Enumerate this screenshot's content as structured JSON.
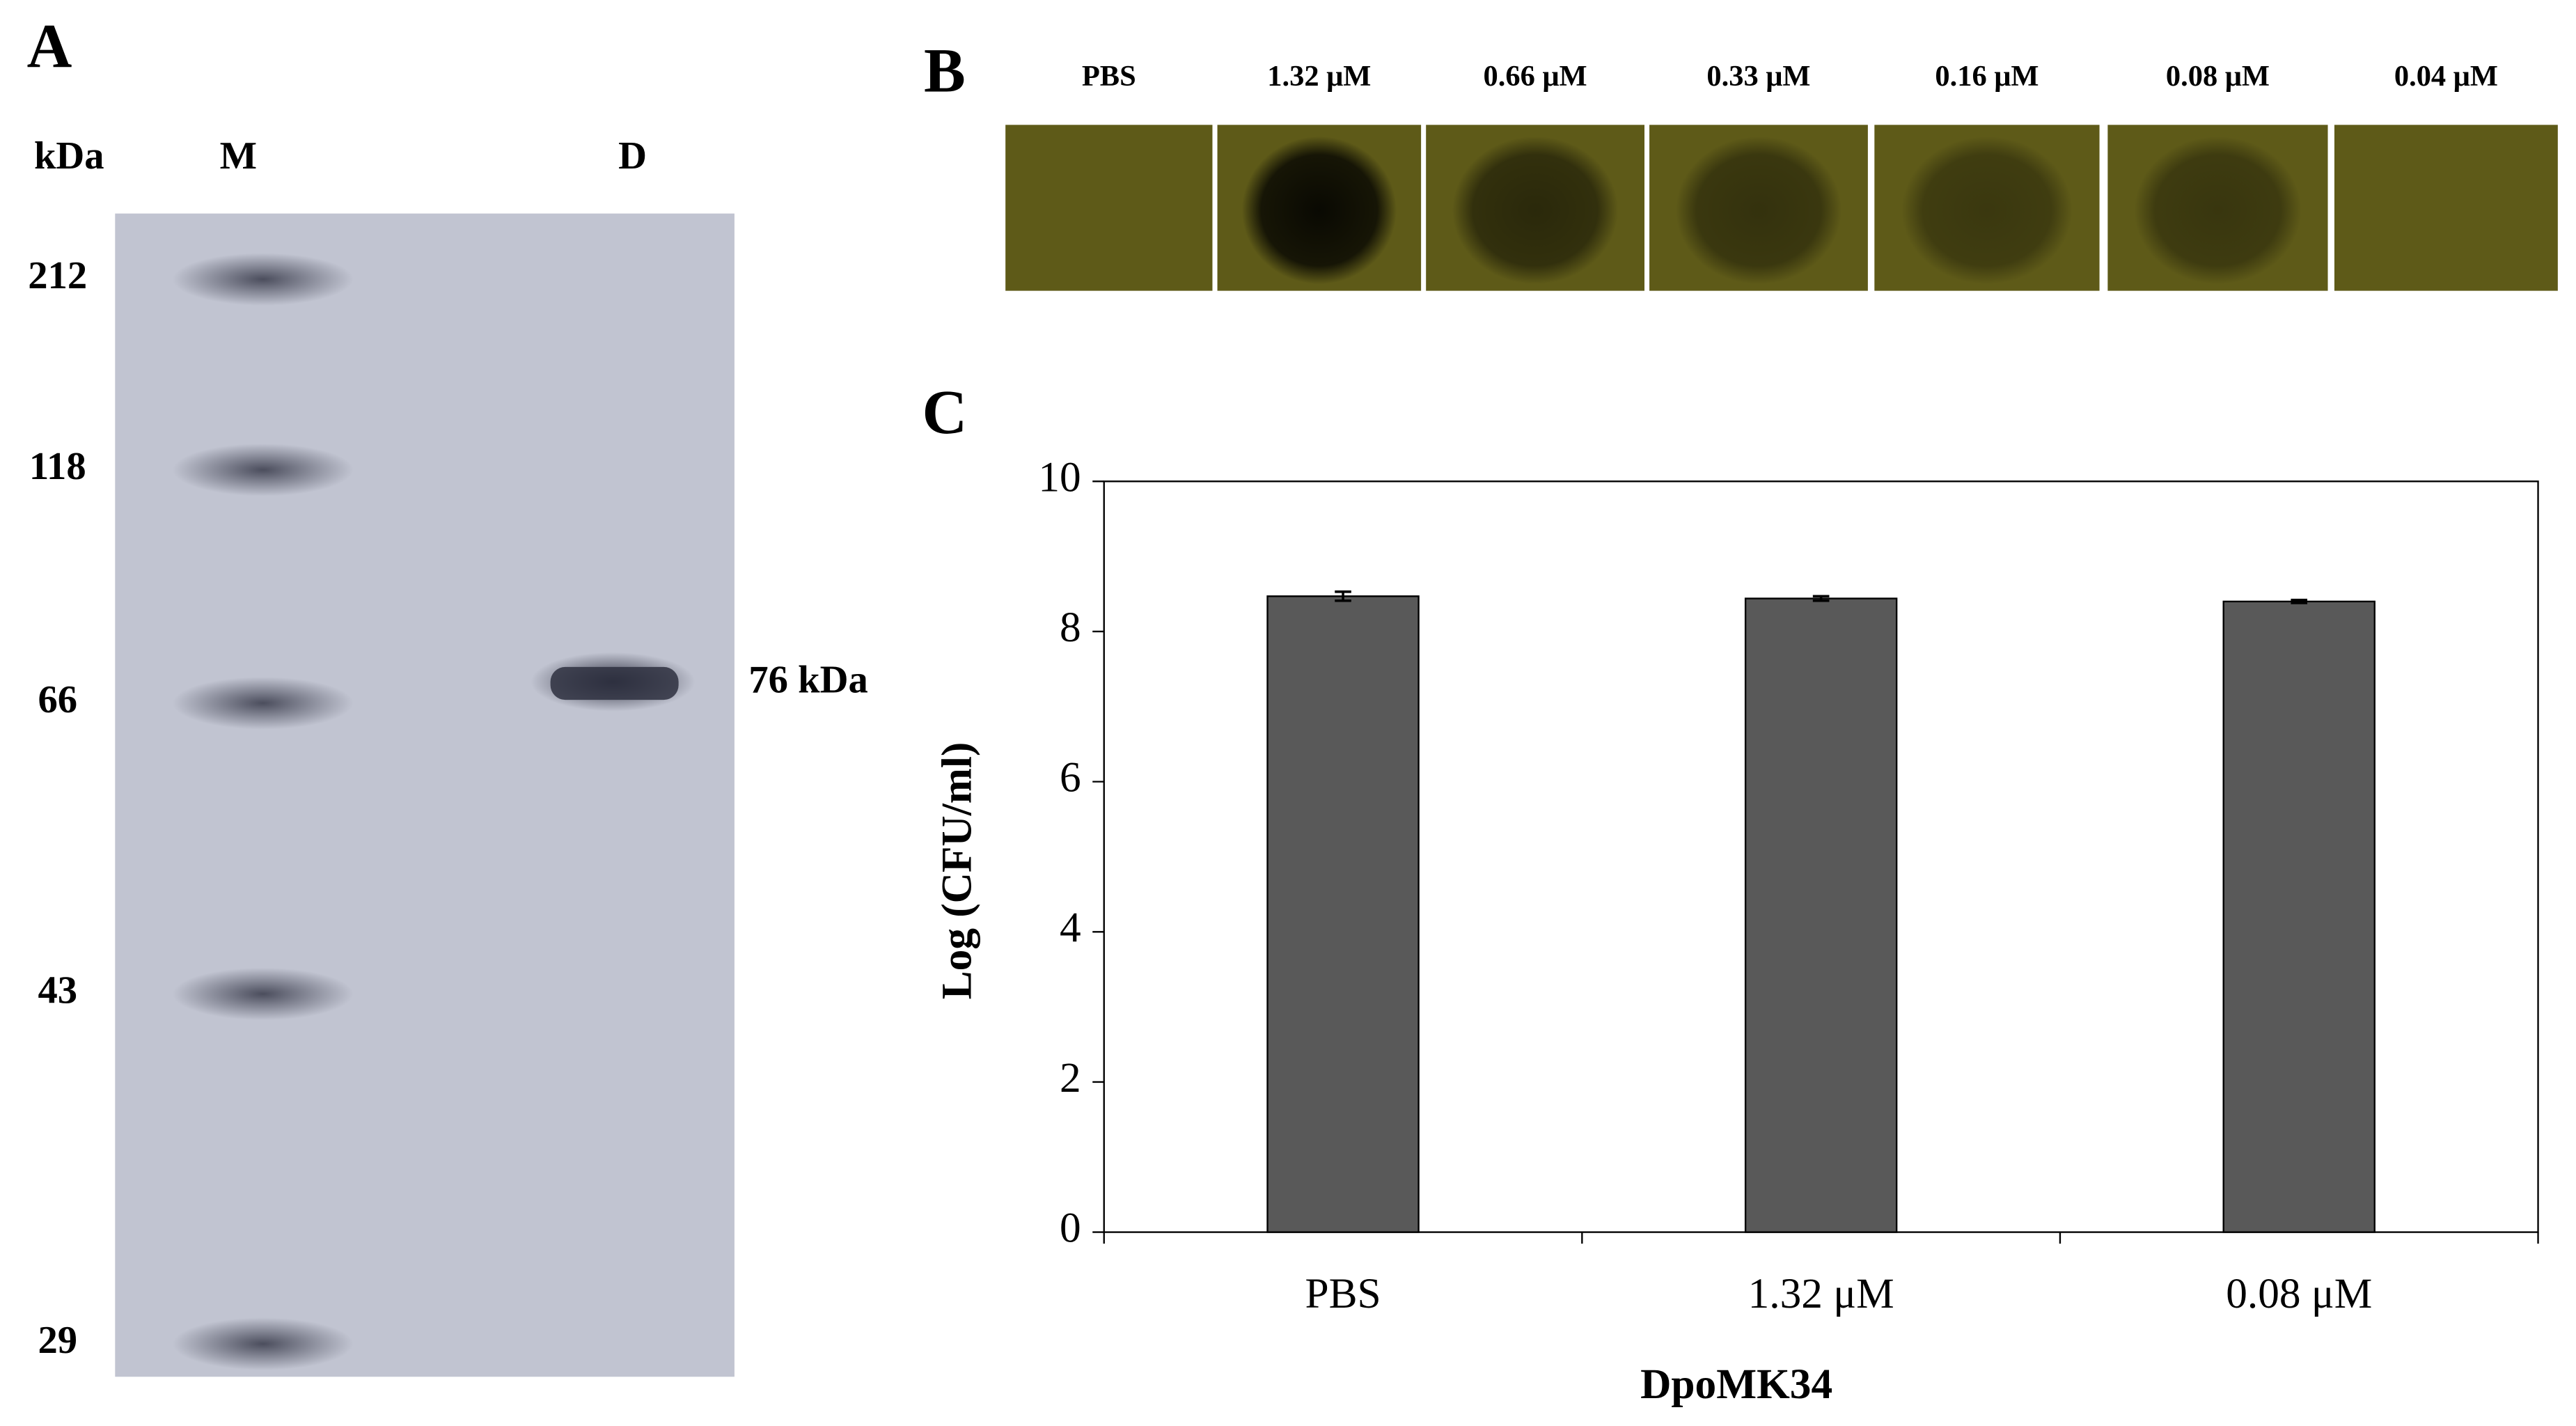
{
  "panels": {
    "A": {
      "label": "A",
      "unit": "kDa",
      "lanes": [
        "M",
        "D"
      ],
      "markers": [
        212,
        118,
        66,
        43,
        29
      ],
      "band_label": "76 kDa"
    },
    "B": {
      "label": "B",
      "concentrations": [
        "PBS",
        "1.32 μM",
        "0.66 μM",
        "0.33 μM",
        "0.16 μM",
        "0.08 μM",
        "0.04 μM"
      ]
    }
  },
  "chart_data": {
    "type": "bar",
    "panel_label": "C",
    "categories": [
      "PBS",
      "1.32 μM",
      "0.08 μM"
    ],
    "values": [
      8.47,
      8.44,
      8.4
    ],
    "errors": [
      0.06,
      0.03,
      0.02
    ],
    "color": "#595959",
    "xlabel": "DpoMK34",
    "ylabel": "Log (CFU/ml)",
    "ylim": [
      0,
      10
    ],
    "yticks": [
      0,
      2,
      4,
      6,
      8,
      10
    ]
  }
}
